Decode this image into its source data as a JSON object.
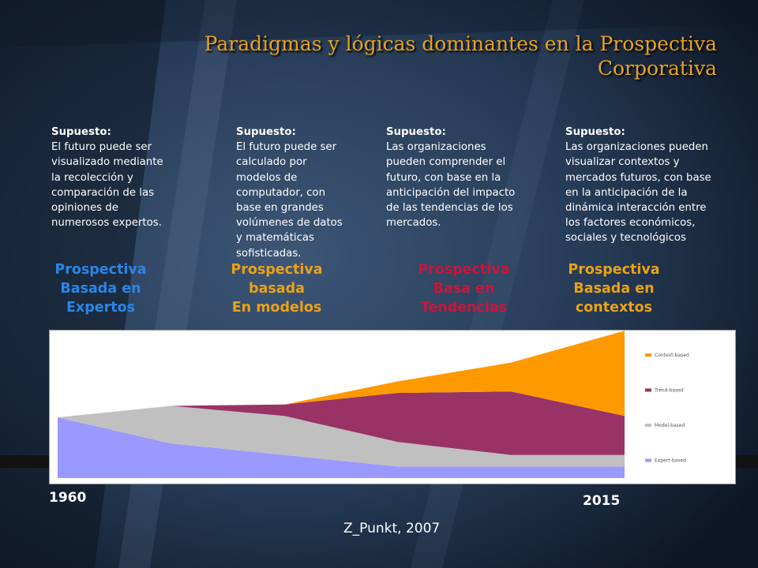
{
  "title": "Paradigmas y lógicas dominantes en la Prospectiva Corporativa",
  "colors": {
    "title": "#e8a21a",
    "cat_blue": "#2a86e8",
    "cat_gold": "#e8a21a",
    "cat_red": "#c8163c",
    "expert": "#9999ff",
    "model": "#c0c0c0",
    "trend": "#993366",
    "context": "#ff9900"
  },
  "columns": [
    {
      "sup_heading": "Supuesto:",
      "sup_lines": [
        "El futuro puede ser",
        "visualizado mediante",
        "la recolección y",
        "comparación de las",
        "opiniones de",
        "numerosos expertos."
      ],
      "cat_lines": [
        "Prospectiva",
        "Basada en",
        "Expertos"
      ]
    },
    {
      "sup_heading": "Supuesto:",
      "sup_lines": [
        "El futuro puede ser",
        "calculado por",
        "modelos de",
        "computador,  con",
        "base en grandes",
        "volúmenes de datos",
        "y  matemáticas",
        "sofisticadas."
      ],
      "cat_lines": [
        "Prospectiva",
        "basada",
        "En modelos"
      ]
    },
    {
      "sup_heading": "Supuesto:",
      "sup_lines": [
        "Las organizaciones",
        "pueden comprender el",
        "futuro, con base en  la",
        "anticipación del impacto",
        "de las tendencias de los",
        "mercados."
      ],
      "cat_lines": [
        "Prospectiva",
        "Basa en",
        "Tendencias"
      ]
    },
    {
      "sup_heading": "Supuesto:",
      "sup_lines": [
        "Las organizaciones pueden",
        "visualizar contextos y",
        "mercados futuros, con base",
        "en la anticipación de la",
        "dinámica interacción entre",
        "los factores económicos,",
        "sociales y tecnológicos"
      ],
      "cat_lines": [
        "Prospectiva",
        "Basada en",
        "contextos"
      ]
    }
  ],
  "chart_data": {
    "type": "area",
    "stacked": true,
    "x": [
      0,
      1,
      2,
      3,
      4,
      5
    ],
    "ylim": [
      0,
      100
    ],
    "series": [
      {
        "name": "Expert-based",
        "values": [
          42,
          24,
          16,
          8,
          8,
          8
        ]
      },
      {
        "name": "Model-based",
        "values": [
          0,
          26,
          27,
          17,
          8,
          8
        ]
      },
      {
        "name": "Trend-based",
        "values": [
          0,
          0,
          8,
          34,
          44,
          27
        ]
      },
      {
        "name": "Context-based",
        "values": [
          0,
          0,
          0,
          8,
          20,
          59
        ]
      }
    ],
    "legend_position": "right"
  },
  "year_start": "1960",
  "year_end": "2015",
  "source": "Z_Punkt, 2007"
}
